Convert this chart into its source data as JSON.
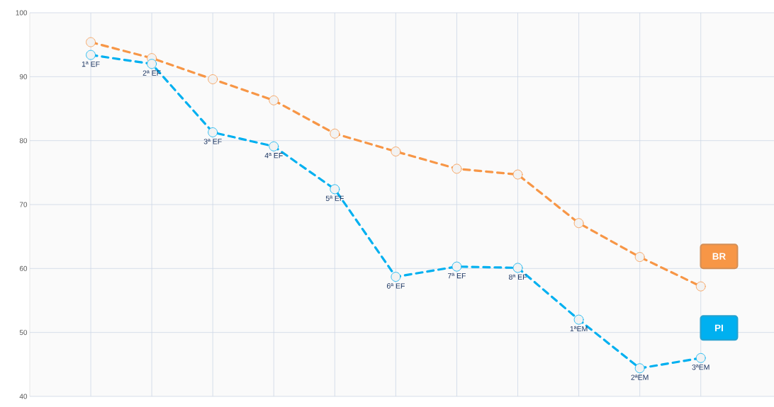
{
  "chart_data": {
    "type": "line",
    "categories": [
      "1ª EF",
      "2ª EF",
      "3ª EF",
      "4ª EF",
      "5ª EF",
      "6ª EF",
      "7ª EF",
      "8ª EF",
      "1ªEM",
      "2ªEM",
      "3ªEM"
    ],
    "series": [
      {
        "name": "BR",
        "color": "#f79646",
        "values": [
          95.4,
          92.9,
          89.6,
          86.3,
          81.1,
          78.3,
          75.6,
          74.7,
          67.1,
          61.8,
          57.2
        ]
      },
      {
        "name": "PI",
        "color": "#00b0f0",
        "values": [
          93.4,
          92.0,
          81.3,
          79.1,
          72.4,
          58.7,
          60.3,
          60.1,
          52.0,
          44.4,
          46.0
        ]
      }
    ],
    "ylim": [
      40,
      100
    ],
    "yticks": [
      40,
      50,
      60,
      70,
      80,
      90,
      100
    ],
    "grid": true,
    "marker": "circle",
    "line_style": "dashed",
    "tick_labels": "y"
  }
}
